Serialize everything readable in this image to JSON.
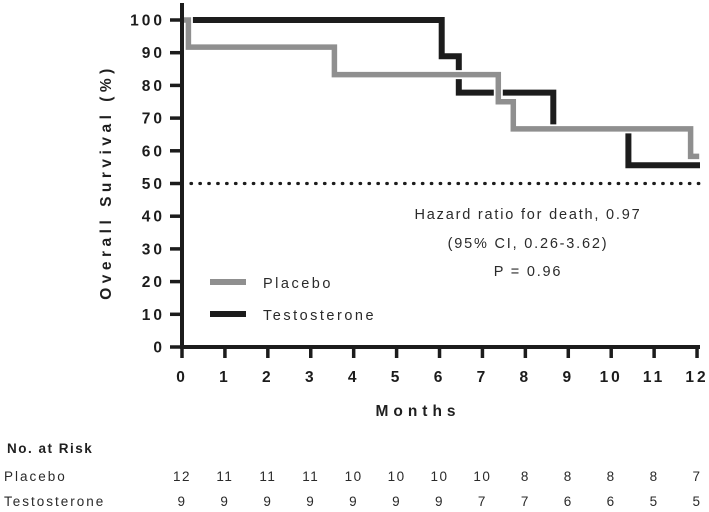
{
  "figure": {
    "colors": {
      "black": "#1c1c1c",
      "gray": "#8f8f8f",
      "background": "#ffffff"
    },
    "y_axis": {
      "title": "Overall Survival (%)"
    },
    "x_axis": {
      "title": "Months"
    },
    "annotation": {
      "line1": "Hazard ratio for death, 0.97",
      "line2": "(95% CI, 0.26-3.62)",
      "line3": "P = 0.96"
    },
    "legend": [
      {
        "label": "Placebo",
        "color": "#8f8f8f"
      },
      {
        "label": "Testosterone",
        "color": "#1c1c1c"
      }
    ]
  },
  "chart_data": {
    "type": "line",
    "subtype": "kaplan-meier-step",
    "xlabel": "Months",
    "ylabel": "Overall Survival (%)",
    "xlim": [
      0,
      12
    ],
    "ylim": [
      0,
      100
    ],
    "x_ticks": [
      0,
      1,
      2,
      3,
      4,
      5,
      6,
      7,
      8,
      9,
      10,
      11,
      12
    ],
    "y_ticks": [
      0,
      10,
      20,
      30,
      40,
      50,
      60,
      70,
      80,
      90,
      100
    ],
    "grid": false,
    "legend_position": "lower-left-inside",
    "reference_line_y": 50,
    "series": [
      {
        "name": "Placebo",
        "color": "#8f8f8f",
        "n": 12,
        "points": [
          [
            0,
            100
          ],
          [
            0.15,
            100
          ],
          [
            0.15,
            91.7
          ],
          [
            3.55,
            91.7
          ],
          [
            3.55,
            83.3
          ],
          [
            7.37,
            83.3
          ],
          [
            7.37,
            75
          ],
          [
            7.72,
            75
          ],
          [
            7.72,
            66.7
          ],
          [
            11.85,
            66.7
          ],
          [
            11.85,
            58.3
          ],
          [
            12.05,
            58.3
          ]
        ]
      },
      {
        "name": "Testosterone",
        "color": "#1c1c1c",
        "n": 9,
        "points": [
          [
            0,
            100
          ],
          [
            6.05,
            100
          ],
          [
            6.05,
            88.9
          ],
          [
            6.45,
            88.9
          ],
          [
            6.45,
            77.8
          ],
          [
            8.65,
            77.8
          ],
          [
            8.65,
            66.7
          ],
          [
            10.4,
            66.7
          ],
          [
            10.4,
            55.6
          ],
          [
            12.07,
            55.6
          ]
        ]
      }
    ]
  },
  "risk_table": {
    "title": "No. at Risk",
    "rows": [
      {
        "label": "Placebo",
        "values": [
          12,
          11,
          11,
          11,
          10,
          10,
          10,
          10,
          8,
          8,
          8,
          8,
          7
        ]
      },
      {
        "label": "Testosterone",
        "values": [
          9,
          9,
          9,
          9,
          9,
          9,
          9,
          7,
          7,
          6,
          6,
          5,
          5
        ]
      }
    ]
  }
}
